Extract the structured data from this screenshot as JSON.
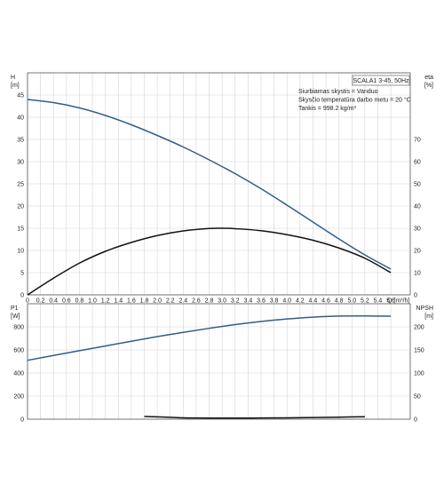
{
  "chart_data": [
    {
      "type": "line",
      "panel": "upper",
      "x_label": "Q [m³/h]",
      "x_ticks": [
        0,
        0.2,
        0.4,
        0.6,
        0.8,
        1.0,
        1.2,
        1.4,
        1.6,
        1.8,
        2.0,
        2.2,
        2.4,
        2.6,
        2.8,
        3.0,
        3.2,
        3.4,
        3.6,
        3.8,
        4.0,
        4.2,
        4.4,
        4.6,
        4.8,
        5.0,
        5.2,
        5.4,
        5.6
      ],
      "x_tick_labels": [
        "0",
        "0.2",
        "0.4",
        "0.6",
        "0.8",
        "1.0",
        "1.2",
        "1.4",
        "1.6",
        "1.8",
        "2.0",
        "2.2",
        "2.4",
        "2.6",
        "2.8",
        "3.0",
        "3.2",
        "3.4",
        "3.6",
        "3.8",
        "4.0",
        "4.2",
        "4.4",
        "4.6",
        "4.8",
        "5.0",
        "5.2",
        "5.4",
        "5.6"
      ],
      "xlim": [
        0,
        5.9
      ],
      "left_axis": {
        "label_top": "H",
        "label_unit": "[m]",
        "ylim": [
          0,
          50
        ],
        "ticks": [
          0,
          5,
          10,
          15,
          20,
          25,
          30,
          35,
          40,
          45
        ]
      },
      "right_axis": {
        "label_top": "eta",
        "label_unit": "[%]",
        "ylim": [
          0,
          100
        ],
        "ticks": [
          0,
          10,
          20,
          30,
          40,
          50,
          60,
          70
        ]
      },
      "legend": {
        "title": "SCALA1 3-45, 50Hz",
        "lines": [
          "Siurbiamas skystis = Vanduo",
          "Skysčio temperatūra darbo metu = 20 °C",
          "Tankis = 998.2 kg/m³"
        ]
      },
      "grid": true,
      "series": [
        {
          "axis": "left",
          "color": "#2f5f8a",
          "x": [
            0,
            0.4,
            0.8,
            1.2,
            1.6,
            2.0,
            2.4,
            2.8,
            3.2,
            3.6,
            4.0,
            4.4,
            4.8,
            5.2,
            5.6
          ],
          "y": [
            44,
            43.3,
            42.1,
            40.4,
            38.3,
            35.9,
            33.3,
            30.4,
            27.3,
            23.9,
            20.2,
            16.4,
            12.6,
            9.0,
            5.8
          ]
        },
        {
          "axis": "right",
          "color": "#111111",
          "x": [
            0,
            0.4,
            0.8,
            1.2,
            1.6,
            2.0,
            2.4,
            2.8,
            3.0,
            3.2,
            3.6,
            4.0,
            4.4,
            4.8,
            5.2,
            5.6
          ],
          "y": [
            0,
            7.5,
            14.3,
            19.6,
            23.6,
            26.7,
            28.8,
            29.9,
            30,
            29.8,
            28.9,
            27.1,
            24.6,
            21.1,
            16.5,
            10
          ]
        }
      ]
    },
    {
      "type": "line",
      "panel": "lower",
      "x_ticks": [
        0,
        0.2,
        0.4,
        0.6,
        0.8,
        1.0,
        1.2,
        1.4,
        1.6,
        1.8,
        2.0,
        2.2,
        2.4,
        2.6,
        2.8,
        3.0,
        3.2,
        3.4,
        3.6,
        3.8,
        4.0,
        4.2,
        4.4,
        4.6,
        4.8,
        5.0,
        5.2,
        5.4,
        5.6
      ],
      "xlim": [
        0,
        5.9
      ],
      "left_axis": {
        "label_top": "P1",
        "label_unit": "[W]",
        "ylim": [
          0,
          1000
        ],
        "ticks": [
          0,
          200,
          400,
          600,
          800
        ]
      },
      "right_axis": {
        "label_top": "NPSH",
        "label_unit": "[m]",
        "ylim": [
          0,
          250
        ],
        "ticks": [
          0,
          50,
          100,
          150,
          200
        ]
      },
      "grid": true,
      "series": [
        {
          "axis": "left",
          "color": "#2f5f8a",
          "x": [
            0,
            0.4,
            0.8,
            1.2,
            1.6,
            2.0,
            2.4,
            2.8,
            3.2,
            3.6,
            4.0,
            4.4,
            4.8,
            5.2,
            5.6
          ],
          "y": [
            510,
            552,
            593,
            634,
            675,
            715,
            752,
            787,
            819,
            846,
            868,
            884,
            893,
            894,
            892
          ]
        },
        {
          "axis": "right",
          "color": "#111111",
          "x": [
            1.8,
            2.0,
            2.2,
            2.4,
            2.6,
            2.8,
            3.0,
            3.2,
            3.6,
            4.0,
            4.4,
            4.8,
            5.2
          ],
          "y": [
            6,
            5,
            4,
            3,
            2.6,
            2.4,
            2.3,
            2.4,
            2.6,
            3,
            3.6,
            4.4,
            5.2
          ]
        }
      ]
    }
  ]
}
